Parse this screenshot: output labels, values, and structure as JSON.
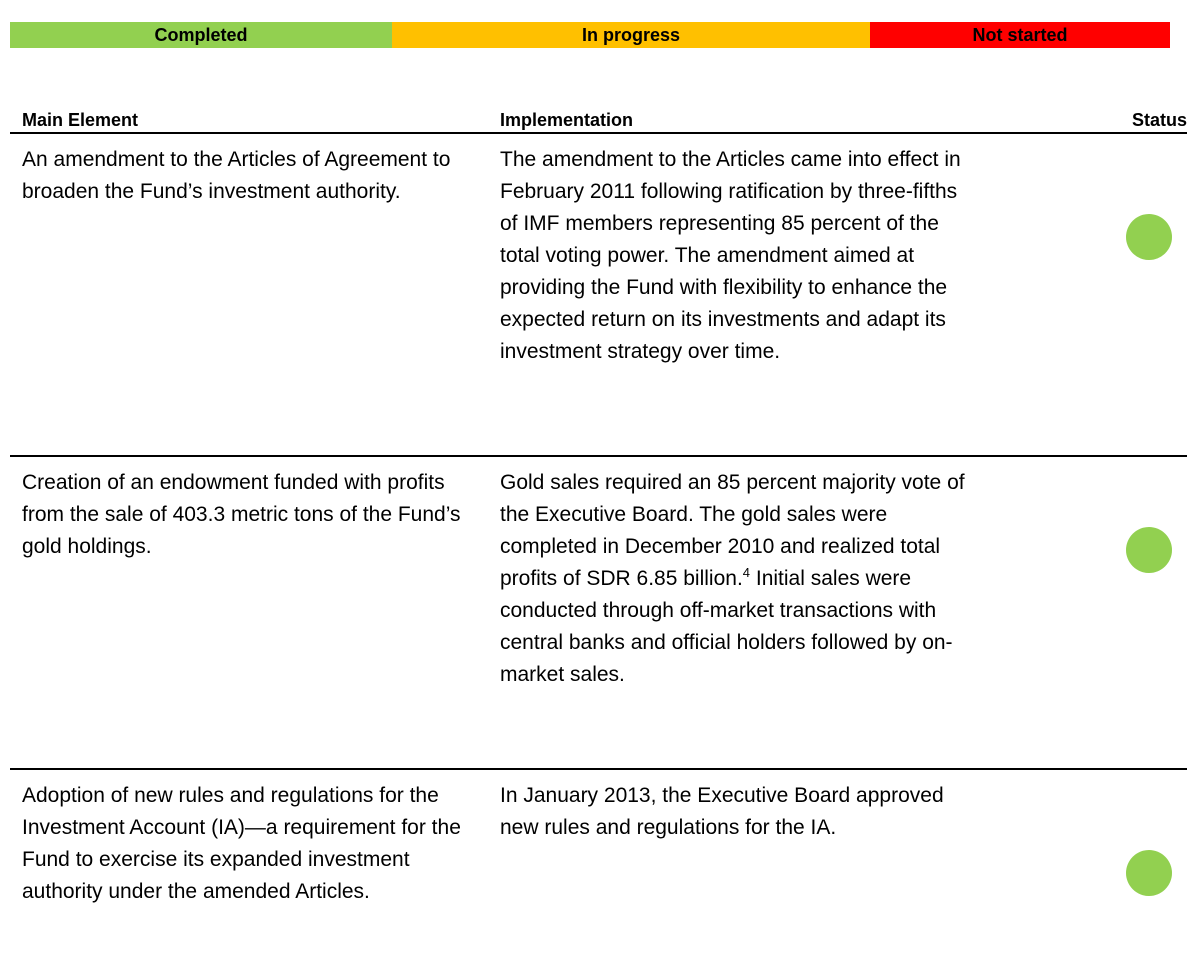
{
  "legend": [
    "Completed",
    "In progress",
    "Not started"
  ],
  "header": {
    "main": "Main Element",
    "implementation": "Implementation",
    "status": "Status"
  },
  "rows": [
    {
      "main": "An amendment to the Articles of Agreement to broaden the Fund’s investment authority.",
      "implementation": "The amendment to the Articles came into effect in February 2011 following ratification by three-fifths of IMF members representing 85 percent of the total voting power. The amendment aimed at providing the Fund with flexibility to enhance the expected return on its investments and adapt its investment strategy over time."
    },
    {
      "main": "Creation of an endowment funded with profits from the sale of 403.3 metric tons of the Fund’s gold holdings.",
      "implementation": "Gold sales required an 85 percent majority vote of the Executive Board. The gold sales were completed in December 2010 and realized total profits of SDR 6.85 billion.",
      "footnote": "4",
      "implementation_rest": " Initial sales were conducted through off-market transactions with central banks and official holders followed by on-market sales."
    },
    {
      "main": "Adoption of new rules and regulations for the Investment Account (IA)—a requirement for the Fund to exercise its expanded investment authority under the amended Articles.",
      "implementation": "In January 2013, the Executive Board approved new rules and regulations for the IA."
    }
  ]
}
